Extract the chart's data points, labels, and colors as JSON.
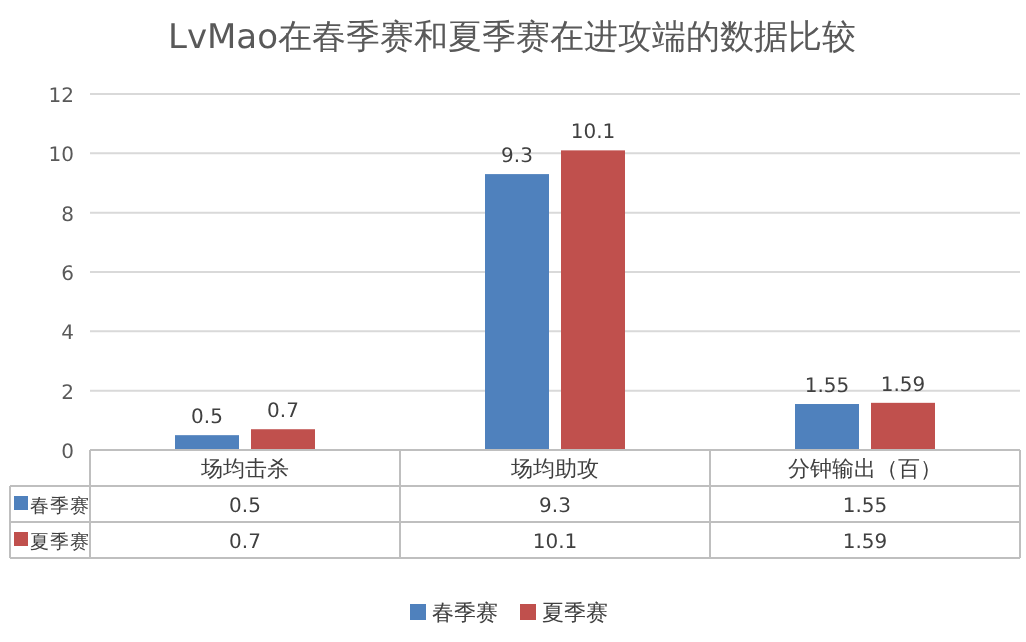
{
  "chart_data": {
    "type": "bar",
    "title": "LvMao在春季赛和夏季赛在进攻端的数据比较",
    "categories": [
      "场均击杀",
      "场均助攻",
      "分钟输出（百）"
    ],
    "series": [
      {
        "name": "春季赛",
        "color": "#4f81bd",
        "values": [
          0.5,
          9.3,
          1.55
        ],
        "value_labels": [
          "0.5",
          "9.3",
          "1.55"
        ]
      },
      {
        "name": "夏季赛",
        "color": "#c0504d",
        "values": [
          0.7,
          10.1,
          1.59
        ],
        "value_labels": [
          "0.7",
          "10.1",
          "1.59"
        ]
      }
    ],
    "ylim": [
      0,
      12
    ],
    "yticks": [
      0,
      2,
      4,
      6,
      8,
      10,
      12
    ],
    "grid": "y",
    "legend": "bottom",
    "data_labels": true
  }
}
